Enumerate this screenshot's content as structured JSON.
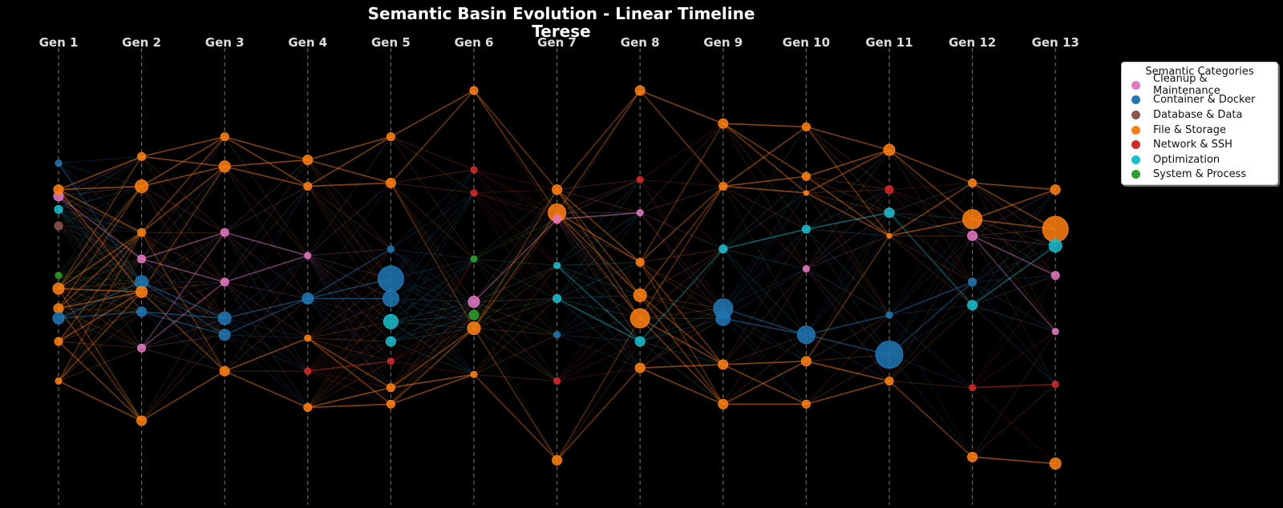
{
  "chart_data": {
    "type": "scatter",
    "title": "Semantic Basin Evolution - Linear Timeline",
    "subtitle": "Terese",
    "categories": [
      "Gen 1",
      "Gen 2",
      "Gen 3",
      "Gen 4",
      "Gen 5",
      "Gen 6",
      "Gen 7",
      "Gen 8",
      "Gen 9",
      "Gen 10",
      "Gen 11",
      "Gen 12",
      "Gen 13"
    ],
    "grid": "vertical dashed lines at each generation",
    "legend": {
      "title": "Semantic Categories",
      "placement": "top-right, outside plot",
      "entries": [
        {
          "name": "Cleanup & Maintenance",
          "color": "#e377c2"
        },
        {
          "name": "Container & Docker",
          "color": "#1f77b4"
        },
        {
          "name": "Database & Data",
          "color": "#8c564b"
        },
        {
          "name": "File & Storage",
          "color": "#ff7f0e"
        },
        {
          "name": "Network & SSH",
          "color": "#d62728"
        },
        {
          "name": "Optimization",
          "color": "#17becf"
        },
        {
          "name": "System & Process",
          "color": "#2ca02c"
        }
      ]
    },
    "note_y": "vertical position has no printed scale; values are relative 0-1 (0 = top)",
    "nodes": [
      {
        "gen": 1,
        "y": 0.32,
        "cat": "Cleanup & Maintenance",
        "size": 6
      },
      {
        "gen": 1,
        "y": 0.36,
        "cat": "Optimization",
        "size": 5
      },
      {
        "gen": 1,
        "y": 0.41,
        "cat": "Database & Data",
        "size": 5
      },
      {
        "gen": 1,
        "y": 0.3,
        "cat": "File & Storage",
        "size": 6
      },
      {
        "gen": 1,
        "y": 0.56,
        "cat": "System & Process",
        "size": 4
      },
      {
        "gen": 1,
        "y": 0.6,
        "cat": "File & Storage",
        "size": 7
      },
      {
        "gen": 1,
        "y": 0.66,
        "cat": "File & Storage",
        "size": 6
      },
      {
        "gen": 1,
        "y": 0.69,
        "cat": "Container & Docker",
        "size": 7
      },
      {
        "gen": 1,
        "y": 0.76,
        "cat": "File & Storage",
        "size": 5
      },
      {
        "gen": 1,
        "y": 0.88,
        "cat": "File & Storage",
        "size": 4
      },
      {
        "gen": 1,
        "y": 0.22,
        "cat": "Container & Docker",
        "size": 4
      },
      {
        "gen": 2,
        "y": 0.2,
        "cat": "File & Storage",
        "size": 5
      },
      {
        "gen": 2,
        "y": 0.29,
        "cat": "File & Storage",
        "size": 8
      },
      {
        "gen": 2,
        "y": 0.43,
        "cat": "File & Storage",
        "size": 5
      },
      {
        "gen": 2,
        "y": 0.51,
        "cat": "Cleanup & Maintenance",
        "size": 5
      },
      {
        "gen": 2,
        "y": 0.58,
        "cat": "Container & Docker",
        "size": 8
      },
      {
        "gen": 2,
        "y": 0.61,
        "cat": "File & Storage",
        "size": 7
      },
      {
        "gen": 2,
        "y": 0.67,
        "cat": "Container & Docker",
        "size": 6
      },
      {
        "gen": 2,
        "y": 0.78,
        "cat": "Cleanup & Maintenance",
        "size": 5
      },
      {
        "gen": 2,
        "y": 1.0,
        "cat": "File & Storage",
        "size": 6
      },
      {
        "gen": 3,
        "y": 0.14,
        "cat": "File & Storage",
        "size": 5
      },
      {
        "gen": 3,
        "y": 0.23,
        "cat": "File & Storage",
        "size": 7
      },
      {
        "gen": 3,
        "y": 0.43,
        "cat": "Cleanup & Maintenance",
        "size": 5
      },
      {
        "gen": 3,
        "y": 0.58,
        "cat": "Cleanup & Maintenance",
        "size": 5
      },
      {
        "gen": 3,
        "y": 0.69,
        "cat": "Container & Docker",
        "size": 8
      },
      {
        "gen": 3,
        "y": 0.74,
        "cat": "Container & Docker",
        "size": 7
      },
      {
        "gen": 3,
        "y": 0.85,
        "cat": "File & Storage",
        "size": 6
      },
      {
        "gen": 4,
        "y": 0.21,
        "cat": "File & Storage",
        "size": 6
      },
      {
        "gen": 4,
        "y": 0.29,
        "cat": "File & Storage",
        "size": 5
      },
      {
        "gen": 4,
        "y": 0.5,
        "cat": "Cleanup & Maintenance",
        "size": 4
      },
      {
        "gen": 4,
        "y": 0.63,
        "cat": "Container & Docker",
        "size": 7
      },
      {
        "gen": 4,
        "y": 0.75,
        "cat": "File & Storage",
        "size": 4
      },
      {
        "gen": 4,
        "y": 0.85,
        "cat": "Network & SSH",
        "size": 4
      },
      {
        "gen": 4,
        "y": 0.96,
        "cat": "File & Storage",
        "size": 5
      },
      {
        "gen": 5,
        "y": 0.14,
        "cat": "File & Storage",
        "size": 5
      },
      {
        "gen": 5,
        "y": 0.28,
        "cat": "File & Storage",
        "size": 6
      },
      {
        "gen": 5,
        "y": 0.48,
        "cat": "Container & Docker",
        "size": 4
      },
      {
        "gen": 5,
        "y": 0.57,
        "cat": "Container & Docker",
        "size": 16
      },
      {
        "gen": 5,
        "y": 0.63,
        "cat": "Container & Docker",
        "size": 10
      },
      {
        "gen": 5,
        "y": 0.7,
        "cat": "Optimization",
        "size": 9
      },
      {
        "gen": 5,
        "y": 0.76,
        "cat": "Optimization",
        "size": 6
      },
      {
        "gen": 5,
        "y": 0.82,
        "cat": "Network & SSH",
        "size": 4
      },
      {
        "gen": 5,
        "y": 0.9,
        "cat": "File & Storage",
        "size": 5
      },
      {
        "gen": 5,
        "y": 0.95,
        "cat": "File & Storage",
        "size": 5
      },
      {
        "gen": 6,
        "y": 0.0,
        "cat": "File & Storage",
        "size": 5
      },
      {
        "gen": 6,
        "y": 0.24,
        "cat": "Network & SSH",
        "size": 4
      },
      {
        "gen": 6,
        "y": 0.31,
        "cat": "Network & SSH",
        "size": 4
      },
      {
        "gen": 6,
        "y": 0.51,
        "cat": "System & Process",
        "size": 4
      },
      {
        "gen": 6,
        "y": 0.64,
        "cat": "Cleanup & Maintenance",
        "size": 7
      },
      {
        "gen": 6,
        "y": 0.68,
        "cat": "System & Process",
        "size": 6
      },
      {
        "gen": 6,
        "y": 0.72,
        "cat": "File & Storage",
        "size": 8
      },
      {
        "gen": 6,
        "y": 0.86,
        "cat": "File & Storage",
        "size": 4
      },
      {
        "gen": 7,
        "y": 0.3,
        "cat": "File & Storage",
        "size": 6
      },
      {
        "gen": 7,
        "y": 0.37,
        "cat": "File & Storage",
        "size": 11
      },
      {
        "gen": 7,
        "y": 0.39,
        "cat": "Cleanup & Maintenance",
        "size": 5
      },
      {
        "gen": 7,
        "y": 0.53,
        "cat": "Optimization",
        "size": 4
      },
      {
        "gen": 7,
        "y": 0.63,
        "cat": "Optimization",
        "size": 5
      },
      {
        "gen": 7,
        "y": 0.74,
        "cat": "Container & Docker",
        "size": 4
      },
      {
        "gen": 7,
        "y": 0.88,
        "cat": "Network & SSH",
        "size": 4
      },
      {
        "gen": 7,
        "y": 1.12,
        "cat": "File & Storage",
        "size": 6
      },
      {
        "gen": 8,
        "y": 0.0,
        "cat": "File & Storage",
        "size": 6
      },
      {
        "gen": 8,
        "y": 0.27,
        "cat": "Network & SSH",
        "size": 4
      },
      {
        "gen": 8,
        "y": 0.37,
        "cat": "Cleanup & Maintenance",
        "size": 4
      },
      {
        "gen": 8,
        "y": 0.52,
        "cat": "File & Storage",
        "size": 5
      },
      {
        "gen": 8,
        "y": 0.62,
        "cat": "File & Storage",
        "size": 8
      },
      {
        "gen": 8,
        "y": 0.69,
        "cat": "File & Storage",
        "size": 12
      },
      {
        "gen": 8,
        "y": 0.76,
        "cat": "Optimization",
        "size": 6
      },
      {
        "gen": 8,
        "y": 0.84,
        "cat": "File & Storage",
        "size": 6
      },
      {
        "gen": 9,
        "y": 0.1,
        "cat": "File & Storage",
        "size": 6
      },
      {
        "gen": 9,
        "y": 0.29,
        "cat": "File & Storage",
        "size": 5
      },
      {
        "gen": 9,
        "y": 0.48,
        "cat": "Optimization",
        "size": 5
      },
      {
        "gen": 9,
        "y": 0.66,
        "cat": "Container & Docker",
        "size": 12
      },
      {
        "gen": 9,
        "y": 0.69,
        "cat": "Container & Docker",
        "size": 9
      },
      {
        "gen": 9,
        "y": 0.83,
        "cat": "File & Storage",
        "size": 6
      },
      {
        "gen": 9,
        "y": 0.95,
        "cat": "File & Storage",
        "size": 6
      },
      {
        "gen": 10,
        "y": 0.11,
        "cat": "File & Storage",
        "size": 5
      },
      {
        "gen": 10,
        "y": 0.26,
        "cat": "File & Storage",
        "size": 5
      },
      {
        "gen": 10,
        "y": 0.31,
        "cat": "File & Storage",
        "size": 3
      },
      {
        "gen": 10,
        "y": 0.42,
        "cat": "Optimization",
        "size": 5
      },
      {
        "gen": 10,
        "y": 0.54,
        "cat": "Cleanup & Maintenance",
        "size": 4
      },
      {
        "gen": 10,
        "y": 0.74,
        "cat": "Container & Docker",
        "size": 11
      },
      {
        "gen": 10,
        "y": 0.82,
        "cat": "File & Storage",
        "size": 6
      },
      {
        "gen": 10,
        "y": 0.95,
        "cat": "File & Storage",
        "size": 5
      },
      {
        "gen": 11,
        "y": 0.18,
        "cat": "File & Storage",
        "size": 7
      },
      {
        "gen": 11,
        "y": 0.3,
        "cat": "Network & SSH",
        "size": 5
      },
      {
        "gen": 11,
        "y": 0.37,
        "cat": "Optimization",
        "size": 6
      },
      {
        "gen": 11,
        "y": 0.44,
        "cat": "File & Storage",
        "size": 3
      },
      {
        "gen": 11,
        "y": 0.68,
        "cat": "Container & Docker",
        "size": 4
      },
      {
        "gen": 11,
        "y": 0.8,
        "cat": "Container & Docker",
        "size": 17
      },
      {
        "gen": 11,
        "y": 0.88,
        "cat": "File & Storage",
        "size": 5
      },
      {
        "gen": 12,
        "y": 0.28,
        "cat": "File & Storage",
        "size": 5
      },
      {
        "gen": 12,
        "y": 0.39,
        "cat": "File & Storage",
        "size": 12
      },
      {
        "gen": 12,
        "y": 0.44,
        "cat": "Cleanup & Maintenance",
        "size": 6
      },
      {
        "gen": 12,
        "y": 0.58,
        "cat": "Container & Docker",
        "size": 5
      },
      {
        "gen": 12,
        "y": 0.65,
        "cat": "Optimization",
        "size": 6
      },
      {
        "gen": 12,
        "y": 0.9,
        "cat": "Network & SSH",
        "size": 4
      },
      {
        "gen": 12,
        "y": 1.11,
        "cat": "File & Storage",
        "size": 6
      },
      {
        "gen": 13,
        "y": 0.3,
        "cat": "File & Storage",
        "size": 6
      },
      {
        "gen": 13,
        "y": 0.42,
        "cat": "File & Storage",
        "size": 16
      },
      {
        "gen": 13,
        "y": 0.47,
        "cat": "Optimization",
        "size": 8
      },
      {
        "gen": 13,
        "y": 0.56,
        "cat": "Cleanup & Maintenance",
        "size": 5
      },
      {
        "gen": 13,
        "y": 0.73,
        "cat": "Cleanup & Maintenance",
        "size": 4
      },
      {
        "gen": 13,
        "y": 0.89,
        "cat": "Network & SSH",
        "size": 4
      },
      {
        "gen": 13,
        "y": 1.13,
        "cat": "File & Storage",
        "size": 7
      }
    ]
  }
}
